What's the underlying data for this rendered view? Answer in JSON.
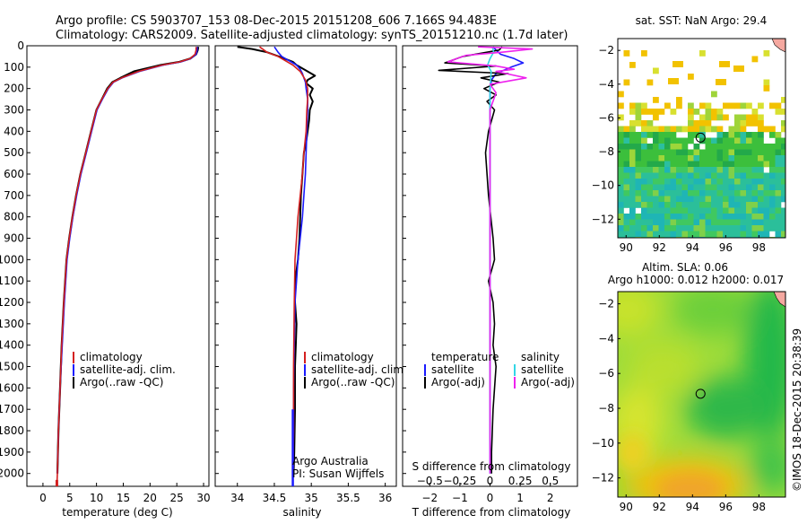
{
  "header": {
    "line1": "Argo profile: CS 5903707_153 08-Dec-2015 20151208_606 7.166S 94.483E",
    "line2": "Climatology: CARS2009. Satellite-adjusted climatology: synTS_20151210.nc (1.7d later)"
  },
  "watermark": "©IMOS 18-Dec-2015 20:38:39",
  "colors": {
    "climatology": "#d42020",
    "satellite": "#1a1aff",
    "argo": "#000000",
    "sat_salinity": "#33d6e6",
    "argo_salinity": "#ee22ee"
  },
  "chart_data": [
    {
      "type": "line",
      "xlabel": "temperature (deg C)",
      "ylabel": "",
      "xlim": [
        -3,
        31
      ],
      "ylim": [
        2060,
        0
      ],
      "xticks": [
        0,
        5,
        10,
        15,
        20,
        25,
        30
      ],
      "yticks": [
        0,
        100,
        200,
        300,
        400,
        500,
        600,
        700,
        800,
        900,
        1000,
        1100,
        1200,
        1300,
        1400,
        1500,
        1600,
        1700,
        1800,
        1900,
        2000
      ],
      "legend": [
        "climatology",
        "satellite-adj. clim.",
        "Argo(..raw -QC)"
      ],
      "legend_position": "lower-middle",
      "series": [
        {
          "name": "Argo(..raw -QC)",
          "x": [
            29.0,
            28.9,
            28.6,
            27.5,
            25.5,
            22.0,
            17.0,
            14.5,
            13.0,
            12.0,
            11.0,
            10.0,
            9.0,
            8.0,
            7.0,
            6.2,
            5.5,
            4.9,
            4.4,
            3.9,
            3.5,
            3.2,
            2.9,
            2.7
          ],
          "y": [
            5,
            20,
            40,
            60,
            75,
            90,
            120,
            150,
            170,
            200,
            250,
            300,
            400,
            500,
            600,
            700,
            800,
            900,
            1000,
            1200,
            1400,
            1600,
            1800,
            2000
          ]
        },
        {
          "name": "satellite-adj. clim.",
          "x": [
            28.8,
            28.8,
            28.6,
            27.6,
            25.8,
            22.5,
            18.0,
            14.8,
            13.2,
            12.2,
            11.1,
            10.1,
            9.1,
            8.1,
            7.1,
            6.3,
            5.6,
            5.0,
            4.5,
            4.0,
            3.6,
            3.2,
            2.9,
            2.7
          ],
          "y": [
            5,
            20,
            40,
            60,
            75,
            90,
            120,
            150,
            170,
            200,
            250,
            300,
            400,
            500,
            600,
            700,
            800,
            900,
            1000,
            1200,
            1400,
            1600,
            1800,
            2000
          ]
        },
        {
          "name": "climatology",
          "x": [
            28.6,
            28.6,
            28.4,
            27.5,
            25.6,
            22.3,
            17.8,
            14.7,
            13.1,
            12.1,
            11.0,
            10.0,
            9.0,
            8.0,
            7.0,
            6.2,
            5.5,
            4.9,
            4.4,
            3.9,
            3.5,
            3.2,
            2.9,
            2.7,
            2.6
          ],
          "y": [
            5,
            20,
            40,
            60,
            75,
            90,
            120,
            150,
            170,
            200,
            250,
            300,
            400,
            500,
            600,
            700,
            800,
            900,
            1000,
            1200,
            1400,
            1600,
            1800,
            2000,
            2060
          ]
        }
      ]
    },
    {
      "type": "line",
      "xlabel": "salinity",
      "ylabel": "",
      "xlim": [
        33.7,
        36.15
      ],
      "ylim": [
        2060,
        0
      ],
      "xticks": [
        34,
        34.5,
        35,
        35.5,
        36
      ],
      "legend": [
        "climatology",
        "satellite-adj. clim.",
        "Argo(..raw -QC)"
      ],
      "legend_position": "lower-right",
      "annotation": [
        "Argo Australia",
        "PI: Susan Wijffels"
      ],
      "series": [
        {
          "name": "Argo(..raw -QC)",
          "x": [
            34.0,
            34.2,
            34.4,
            34.6,
            34.75,
            34.8,
            34.95,
            35.05,
            34.95,
            34.93,
            35.02,
            34.98,
            35.02,
            34.98,
            34.97,
            34.95,
            34.93,
            34.9,
            34.88,
            34.86,
            34.85,
            34.84,
            34.82,
            34.8,
            34.78,
            34.78,
            34.8,
            34.79,
            34.78,
            34.78,
            34.77,
            34.76
          ],
          "y": [
            5,
            15,
            30,
            55,
            75,
            90,
            120,
            140,
            160,
            175,
            200,
            230,
            260,
            300,
            350,
            400,
            450,
            500,
            600,
            700,
            800,
            900,
            1000,
            1050,
            1100,
            1200,
            1300,
            1400,
            1500,
            1700,
            1900,
            2000
          ]
        },
        {
          "name": "satellite-adj. clim.",
          "x": [
            34.5,
            34.55,
            34.6,
            34.7,
            34.8,
            34.85,
            34.88,
            34.9,
            34.92,
            34.93,
            34.95,
            34.95,
            34.94,
            34.93,
            34.92,
            34.9,
            34.88,
            34.85,
            34.82,
            34.8,
            34.78,
            34.77,
            34.76,
            34.76,
            34.75
          ],
          "y": [
            5,
            30,
            50,
            70,
            90,
            110,
            130,
            150,
            170,
            200,
            250,
            300,
            400,
            500,
            600,
            700,
            800,
            900,
            1000,
            1100,
            1200,
            1400,
            1600,
            1800,
            2000
          ]
        },
        {
          "name": "climatology",
          "x": [
            34.3,
            34.4,
            34.55,
            34.65,
            34.75,
            34.85,
            34.92,
            34.95,
            34.95,
            34.94,
            34.93,
            34.9,
            34.88,
            34.85,
            34.82,
            34.8,
            34.78,
            34.77,
            34.76,
            34.76,
            34.75
          ],
          "y": [
            5,
            30,
            50,
            70,
            90,
            120,
            160,
            200,
            250,
            300,
            400,
            500,
            600,
            700,
            800,
            900,
            1000,
            1200,
            1500,
            1800,
            2060
          ]
        }
      ]
    },
    {
      "type": "line",
      "xlabel": "T difference from climatology",
      "xlabel_top": "S difference from climatology",
      "xlim": [
        -2.9,
        2.9
      ],
      "ylim": [
        2060,
        0
      ],
      "xticks": [
        -2,
        -1,
        0,
        1,
        2
      ],
      "xticks_top": [
        -0.5,
        -0.25,
        0,
        0.25,
        0.5
      ],
      "xticks_top_labels": [
        "−0.5",
        "−0.25",
        "0",
        "0.25",
        "0.5"
      ],
      "legend": {
        "temperature": {
          "title": "temperature",
          "entries": [
            "satellite",
            "Argo(-adj)"
          ]
        },
        "salinity": {
          "title": "salinity",
          "entries": [
            "satellite",
            "Argo(-adj)"
          ]
        }
      },
      "legend_position": "lower-middle",
      "series": [
        {
          "name": "temperature satellite",
          "x": [
            0.1,
            0.2,
            0.35,
            0.8,
            1.1,
            0.7,
            0.2,
            0.05,
            0,
            0,
            0,
            0,
            0
          ],
          "y": [
            5,
            20,
            40,
            60,
            80,
            100,
            130,
            160,
            200,
            500,
            1000,
            1500,
            2000
          ]
        },
        {
          "name": "temperature Argo(-adj)",
          "x": [
            0.4,
            0.3,
            -0.9,
            -1.5,
            0.2,
            -1.7,
            0.6,
            -0.3,
            0.3,
            -0.2,
            0.2,
            -0.1,
            0.15,
            -0.05,
            -0.15,
            -0.05,
            0.1,
            0.15,
            0.05,
            -0.05,
            0.1,
            0.15,
            0.1,
            0.2,
            0.1,
            0.05,
            0.05
          ],
          "y": [
            5,
            20,
            50,
            80,
            95,
            115,
            130,
            150,
            170,
            200,
            230,
            260,
            300,
            400,
            500,
            700,
            900,
            1000,
            1050,
            1100,
            1200,
            1300,
            1400,
            1500,
            1700,
            1900,
            2000
          ]
        },
        {
          "name": "salinity satellite",
          "x": [
            0.02,
            0.03,
            0.0,
            -0.02,
            0.01,
            0.0,
            0.0,
            0.0,
            0.0,
            0.0
          ],
          "y": [
            5,
            30,
            60,
            90,
            120,
            200,
            500,
            1000,
            1500,
            2000
          ]
        },
        {
          "name": "salinity Argo(-adj)",
          "x": [
            -0.1,
            0.35,
            0.1,
            -0.2,
            -0.35,
            0.05,
            0.2,
            0.05,
            0.3,
            0.0,
            0.05,
            0.0,
            0.0,
            0.0,
            0.0,
            0.0
          ],
          "y": [
            5,
            15,
            30,
            45,
            75,
            95,
            110,
            120,
            150,
            180,
            220,
            300,
            500,
            1000,
            1500,
            2000
          ]
        }
      ]
    },
    {
      "type": "heatmap",
      "title": "sat. SST: NaN Argo: 29.4",
      "xlim": [
        89.5,
        99.6
      ],
      "ylim": [
        -13.1,
        -1.3
      ],
      "xticks": [
        90,
        92,
        94,
        96,
        98
      ],
      "yticks": [
        -2,
        -4,
        -6,
        -8,
        -10,
        -12
      ],
      "yticks_labels": [
        "−2",
        "−4",
        "−6",
        "−8",
        "−10",
        "−12"
      ],
      "marker": {
        "lon": 94.483,
        "lat": -7.166
      }
    },
    {
      "type": "heatmap",
      "title": "Altim. SLA: 0.06",
      "subtitle": "Argo h1000: 0.012 h2000: 0.017",
      "xlim": [
        89.5,
        99.6
      ],
      "ylim": [
        -13.1,
        -1.3
      ],
      "xticks": [
        90,
        92,
        94,
        96,
        98
      ],
      "yticks": [
        -2,
        -4,
        -6,
        -8,
        -10,
        -12
      ],
      "yticks_labels": [
        "−2",
        "−4",
        "−6",
        "−8",
        "−10",
        "−12"
      ],
      "marker": {
        "lon": 94.483,
        "lat": -7.166
      }
    }
  ]
}
